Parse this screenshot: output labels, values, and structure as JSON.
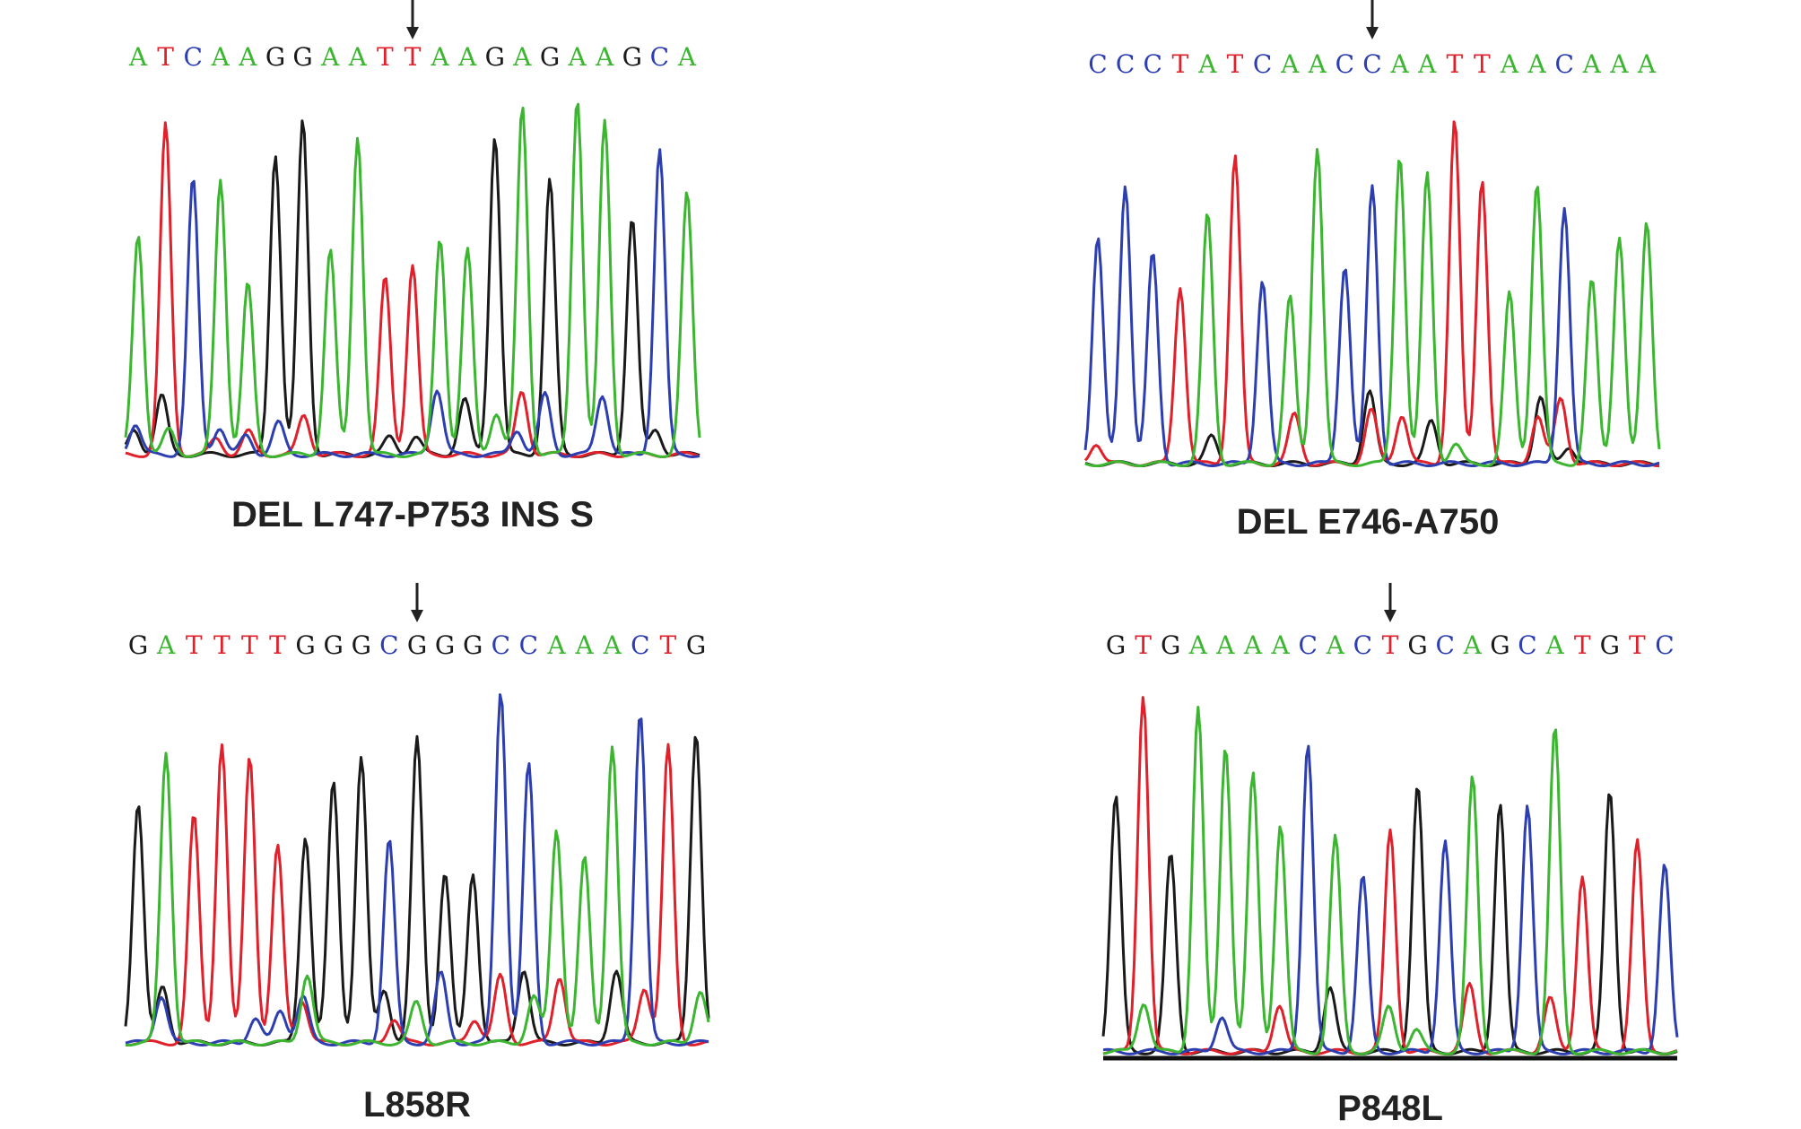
{
  "colors": {
    "A": "#3cb531",
    "C": "#2d3fb0",
    "G": "#1a1a1a",
    "T": "#e0202a",
    "arrow": "#222222",
    "label": "#222222"
  },
  "panels": [
    {
      "label": "DEL L747-P753 INS S",
      "sequence": "ATCAAGGAATTAAGAGAAGCA",
      "arrow_index": 10,
      "baseline": false
    },
    {
      "label": "DEL E746-A750",
      "sequence": "CCCTATCAACCAATTAACAAA",
      "arrow_index": 10,
      "baseline": false
    },
    {
      "label": "L858R",
      "sequence": "GATTTTGGGCGGGCCAAACTG",
      "arrow_index": 10,
      "baseline": false
    },
    {
      "label": "P848L",
      "sequence": "GTGAAAACACTGCAGCATGTC",
      "arrow_index": 10,
      "baseline": true
    }
  ]
}
